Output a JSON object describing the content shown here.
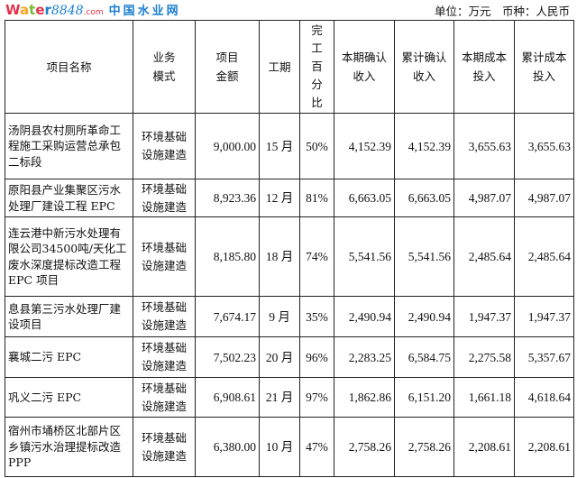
{
  "unit_note": "单位：万元　币种：人民币",
  "headers": {
    "name": "项目名称",
    "mode": [
      "业务",
      "模式"
    ],
    "amount": [
      "项目",
      "金额"
    ],
    "period": "工期",
    "pct": [
      "完",
      "工",
      "百",
      "分",
      "比"
    ],
    "cur_rev": [
      "本期确认",
      "收入"
    ],
    "cum_rev": [
      "累计确认",
      "收入"
    ],
    "cur_cost": [
      "本期成本",
      "投入"
    ],
    "cum_cost": [
      "累计成本",
      "投入"
    ]
  },
  "rows": [
    {
      "name": "汤阴县农村厕所革命工程施工采购运营总承包二标段",
      "mode": "环境基础设施建造",
      "amount": "9,000.00",
      "period": "15 月",
      "pct": "50%",
      "cur_rev": "4,152.39",
      "cum_rev": "4,152.39",
      "cur_cost": "3,655.63",
      "cum_cost": "3,655.63"
    },
    {
      "name": "原阳县产业集聚区污水处理厂建设工程 EPC",
      "mode": "环境基础设施建造",
      "amount": "8,923.36",
      "period": "12 月",
      "pct": "81%",
      "cur_rev": "6,663.05",
      "cum_rev": "6,663.05",
      "cur_cost": "4,987.07",
      "cum_cost": "4,987.07"
    },
    {
      "name": "连云港中新污水处理有限公司34500吨/天化工废水深度提标改造工程 EPC 项目",
      "mode": "环境基础设施建造",
      "amount": "8,185.80",
      "period": "18 月",
      "pct": "74%",
      "cur_rev": "5,541.56",
      "cum_rev": "5,541.56",
      "cur_cost": "2,485.64",
      "cum_cost": "2,485.64"
    },
    {
      "name": "息县第三污水处理厂建设项目",
      "mode": "环境基础设施建造",
      "amount": "7,674.17",
      "period": "9 月",
      "pct": "35%",
      "cur_rev": "2,490.94",
      "cum_rev": "2,490.94",
      "cur_cost": "1,947.37",
      "cum_cost": "1,947.37"
    },
    {
      "name": "襄城二污 EPC",
      "mode": "环境基础设施建造",
      "amount": "7,502.23",
      "period": "20 月",
      "pct": "96%",
      "cur_rev": "2,283.25",
      "cum_rev": "6,584.75",
      "cur_cost": "2,275.58",
      "cum_cost": "5,357.67"
    },
    {
      "name": "巩义二污 EPC",
      "mode": "环境基础设施建造",
      "amount": "6,908.61",
      "period": "21 月",
      "pct": "97%",
      "cur_rev": "1,862.86",
      "cum_rev": "6,151.20",
      "cur_cost": "1,661.18",
      "cum_cost": "4,618.64"
    },
    {
      "name": "宿州市埇桥区北部片区乡镇污水治理提标改造 PPP",
      "mode": "环境基础设施建造",
      "amount": "6,380.00",
      "period": "10 月",
      "pct": "47%",
      "cur_rev": "2,758.26",
      "cum_rev": "2,758.26",
      "cur_cost": "2,208.61",
      "cum_cost": "2,208.61"
    }
  ],
  "watermark": {
    "logo_text": "Water8848",
    "logo_domain": ".com",
    "logo_cn": "中国水业网"
  }
}
